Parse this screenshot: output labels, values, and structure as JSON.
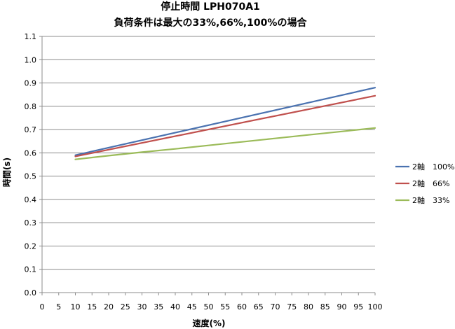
{
  "chart_data": {
    "type": "line",
    "title": "停止時間 LPH070A1",
    "subtitle": "負荷条件は最大の33%,66%,100%の場合",
    "xlabel": "速度(%)",
    "ylabel": "時間(s)",
    "xlim": [
      0,
      100
    ],
    "ylim": [
      0.0,
      1.1
    ],
    "xticks": [
      0,
      5,
      10,
      15,
      20,
      25,
      30,
      35,
      40,
      45,
      50,
      55,
      60,
      65,
      70,
      75,
      80,
      85,
      90,
      95,
      100
    ],
    "xtick_labels": [
      "0",
      "5",
      "10",
      "15",
      "20",
      "25",
      "30",
      "35",
      "40",
      "45",
      "50",
      "55",
      "60",
      "65",
      "70",
      "75",
      "80",
      "85",
      "90",
      "95",
      "100"
    ],
    "yticks": [
      0.0,
      0.1,
      0.2,
      0.3,
      0.4,
      0.5,
      0.6,
      0.7,
      0.8,
      0.9,
      1.0,
      1.1
    ],
    "ytick_labels": [
      "0.0",
      "0.1",
      "0.2",
      "0.3",
      "0.4",
      "0.5",
      "0.6",
      "0.7",
      "0.8",
      "0.9",
      "1.0",
      "1.1"
    ],
    "grid": "horizontal",
    "legend_position": "right",
    "series": [
      {
        "name": "2軸　100%",
        "color": "#4a72b0",
        "x": [
          10,
          100
        ],
        "y": [
          0.59,
          0.88
        ]
      },
      {
        "name": "2軸　66%",
        "color": "#c0504d",
        "x": [
          10,
          100
        ],
        "y": [
          0.585,
          0.845
        ]
      },
      {
        "name": "2軸　33%",
        "color": "#9bbb59",
        "x": [
          10,
          20,
          30,
          40,
          50,
          60,
          70,
          80,
          90,
          100
        ],
        "y": [
          0.572,
          0.588,
          0.603,
          0.617,
          0.632,
          0.647,
          0.662,
          0.677,
          0.692,
          0.707
        ]
      }
    ]
  }
}
